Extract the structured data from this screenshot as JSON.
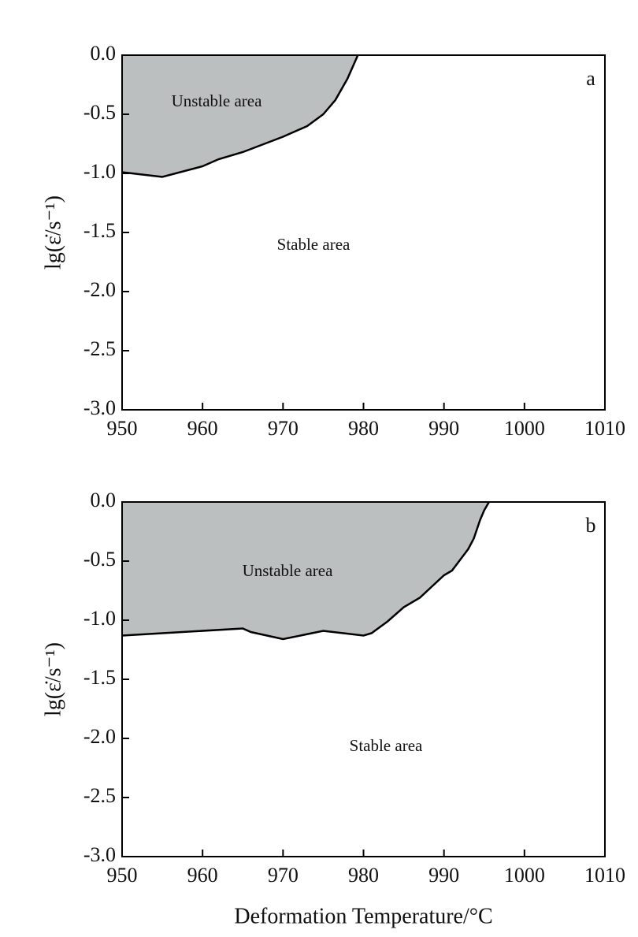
{
  "chart_data": [
    {
      "type": "area",
      "panel": "a",
      "y_label": "lg(ε̇/s⁻¹)",
      "annotations": [
        "Unstable area",
        "Stable area"
      ],
      "x": [
        950,
        955,
        960,
        962,
        965,
        970,
        973,
        975,
        976.5,
        978,
        979.3
      ],
      "values": [
        -0.99,
        -1.03,
        -0.94,
        -0.88,
        -0.82,
        -0.69,
        -0.6,
        -0.5,
        -0.38,
        -0.2,
        0
      ],
      "color": "#bcbfc0",
      "xlim": [
        950,
        1010
      ],
      "xticks": [
        950,
        960,
        970,
        980,
        990,
        1000,
        1010
      ],
      "ylim": [
        -3,
        0
      ],
      "yticks": [
        {
          "value": 0,
          "label": "0.0"
        },
        -0.5,
        {
          "value": -1,
          "label": "-1.0"
        },
        -1.5,
        {
          "value": -2,
          "label": "-2.0"
        },
        -2.5,
        {
          "value": -3,
          "label": "-3.0"
        }
      ]
    },
    {
      "type": "area",
      "panel": "b",
      "y_label": "lg(ε̇/s⁻¹)",
      "x_label": "Deformation Temperature/°C",
      "annotations": [
        "Unstable area",
        "Stable area"
      ],
      "x": [
        950,
        955,
        965,
        966,
        970,
        975,
        980,
        981,
        983,
        985,
        987,
        990,
        991,
        993,
        993.7,
        994.5,
        995,
        995.6
      ],
      "values": [
        -1.13,
        -1.11,
        -1.07,
        -1.1,
        -1.16,
        -1.09,
        -1.13,
        -1.11,
        -1.01,
        -0.89,
        -0.81,
        -0.62,
        -0.58,
        -0.4,
        -0.31,
        -0.15,
        -0.07,
        0
      ],
      "color": "#bcbfc0",
      "xlim": [
        950,
        1010
      ],
      "xticks": [
        950,
        960,
        970,
        980,
        990,
        1000,
        1010
      ],
      "ylim": [
        -3,
        0
      ],
      "yticks": [
        {
          "value": 0,
          "label": "0.0"
        },
        -0.5,
        {
          "value": -1,
          "label": "-1.0"
        },
        -1.5,
        {
          "value": -2,
          "label": "-2.0"
        },
        -2.5,
        {
          "value": -3,
          "label": "-3.0"
        }
      ]
    }
  ]
}
